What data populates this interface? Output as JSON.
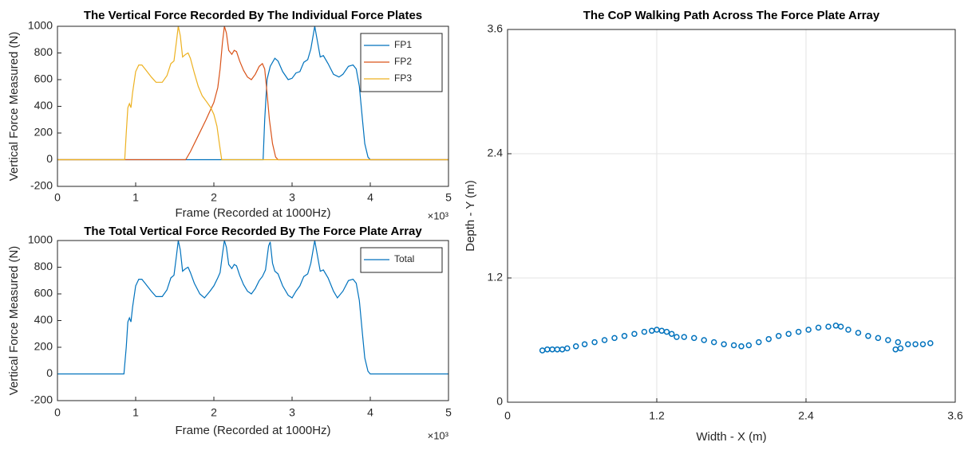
{
  "chart_data": [
    {
      "type": "line",
      "title": "The Vertical Force Recorded By The Individual Force Plates",
      "xlabel": "Frame (Recorded at 1000Hz)",
      "ylabel": "Vertical Force Measured (N)",
      "x_multiplier": "×10³",
      "xlim": [
        0,
        5000
      ],
      "ylim": [
        -200,
        1000
      ],
      "xticks": [
        0,
        {
          "value": 1000,
          "label": "1"
        },
        {
          "value": 2000,
          "label": "2"
        },
        {
          "value": 3000,
          "label": "3"
        },
        {
          "value": 4000,
          "label": "4"
        },
        {
          "value": 5000,
          "label": "5"
        }
      ],
      "yticks": [
        -200,
        0,
        200,
        400,
        600,
        800,
        1000
      ],
      "grid": false,
      "legend": "northeast",
      "series": [
        {
          "name": "FP1",
          "color": "#0072BD",
          "x": [
            0,
            2630,
            2650,
            2680,
            2720,
            2780,
            2820,
            2880,
            2950,
            3000,
            3050,
            3100,
            3150,
            3200,
            3240,
            3290,
            3320,
            3360,
            3400,
            3460,
            3530,
            3600,
            3650,
            3720,
            3780,
            3820,
            3860,
            3900,
            3930,
            3970,
            4000,
            5000
          ],
          "values": [
            0,
            0,
            300,
            600,
            700,
            760,
            740,
            660,
            600,
            610,
            650,
            660,
            730,
            750,
            830,
            1000,
            900,
            770,
            780,
            720,
            640,
            620,
            640,
            700,
            710,
            680,
            550,
            300,
            120,
            20,
            0,
            0
          ]
        },
        {
          "name": "FP2",
          "color": "#D95319",
          "x": [
            0,
            1640,
            1700,
            1800,
            1900,
            2000,
            2050,
            2080,
            2110,
            2135,
            2160,
            2190,
            2230,
            2260,
            2290,
            2330,
            2380,
            2430,
            2480,
            2530,
            2580,
            2620,
            2650,
            2680,
            2710,
            2750,
            2790,
            2820,
            5000
          ],
          "values": [
            0,
            0,
            60,
            180,
            300,
            430,
            540,
            680,
            880,
            1000,
            950,
            820,
            790,
            820,
            810,
            740,
            670,
            620,
            600,
            640,
            700,
            720,
            680,
            500,
            300,
            120,
            20,
            0,
            0
          ]
        },
        {
          "name": "FP3",
          "color": "#EDB120",
          "x": [
            0,
            860,
            880,
            900,
            920,
            940,
            960,
            1000,
            1040,
            1080,
            1120,
            1200,
            1260,
            1340,
            1400,
            1450,
            1490,
            1520,
            1545,
            1570,
            1600,
            1640,
            1670,
            1700,
            1750,
            1800,
            1850,
            1900,
            1960,
            2000,
            2040,
            2070,
            2100,
            5000
          ],
          "values": [
            0,
            0,
            200,
            390,
            420,
            390,
            500,
            660,
            710,
            710,
            680,
            620,
            580,
            580,
            630,
            720,
            740,
            880,
            1000,
            930,
            770,
            790,
            800,
            760,
            650,
            550,
            480,
            440,
            390,
            340,
            250,
            120,
            0,
            0
          ]
        }
      ]
    },
    {
      "type": "line",
      "title": "The Total Vertical Force Recorded By The Force Plate Array",
      "xlabel": "Frame (Recorded at 1000Hz)",
      "ylabel": "Vertical Force Measured (N)",
      "x_multiplier": "×10³",
      "xlim": [
        0,
        5000
      ],
      "ylim": [
        -200,
        1000
      ],
      "xticks": [
        0,
        {
          "value": 1000,
          "label": "1"
        },
        {
          "value": 2000,
          "label": "2"
        },
        {
          "value": 3000,
          "label": "3"
        },
        {
          "value": 4000,
          "label": "4"
        },
        {
          "value": 5000,
          "label": "5"
        }
      ],
      "yticks": [
        -200,
        0,
        200,
        400,
        600,
        800,
        1000
      ],
      "grid": false,
      "legend": "northeast",
      "series": [
        {
          "name": "Total",
          "color": "#0072BD",
          "x": [
            0,
            850,
            880,
            900,
            920,
            940,
            960,
            1000,
            1040,
            1080,
            1120,
            1200,
            1260,
            1340,
            1400,
            1450,
            1490,
            1520,
            1545,
            1570,
            1600,
            1640,
            1670,
            1700,
            1750,
            1820,
            1880,
            1950,
            2000,
            2050,
            2080,
            2110,
            2135,
            2160,
            2190,
            2230,
            2260,
            2290,
            2330,
            2380,
            2430,
            2480,
            2530,
            2580,
            2620,
            2660,
            2700,
            2720,
            2750,
            2780,
            2820,
            2880,
            2950,
            3000,
            3050,
            3100,
            3150,
            3200,
            3240,
            3290,
            3320,
            3360,
            3400,
            3460,
            3530,
            3580,
            3650,
            3720,
            3780,
            3820,
            3860,
            3900,
            3930,
            3970,
            4000,
            5000
          ],
          "values": [
            0,
            0,
            200,
            390,
            420,
            390,
            500,
            660,
            710,
            710,
            680,
            620,
            580,
            580,
            630,
            720,
            740,
            880,
            1000,
            930,
            770,
            790,
            800,
            760,
            680,
            600,
            570,
            620,
            660,
            720,
            760,
            900,
            1000,
            950,
            820,
            790,
            820,
            810,
            740,
            670,
            620,
            600,
            640,
            700,
            730,
            780,
            960,
            990,
            830,
            770,
            750,
            660,
            590,
            570,
            620,
            660,
            730,
            750,
            830,
            1000,
            900,
            770,
            780,
            720,
            620,
            570,
            620,
            700,
            710,
            680,
            550,
            300,
            120,
            20,
            0,
            0
          ]
        }
      ]
    },
    {
      "type": "scatter",
      "title": "The CoP Walking Path Across The Force Plate Array",
      "xlabel": "Width - X (m)",
      "ylabel": "Depth - Y (m)",
      "xlim": [
        0,
        3.6
      ],
      "ylim": [
        0,
        3.6
      ],
      "xticks": [
        0,
        1.2,
        2.4,
        3.6
      ],
      "yticks": [
        0,
        1.2,
        2.4,
        3.6
      ],
      "grid": true,
      "color": "#0072BD",
      "x": [
        0.28,
        0.32,
        0.36,
        0.4,
        0.44,
        0.48,
        0.55,
        0.62,
        0.7,
        0.78,
        0.86,
        0.94,
        1.02,
        1.1,
        1.16,
        1.2,
        1.24,
        1.28,
        1.32,
        1.36,
        1.42,
        1.5,
        1.58,
        1.66,
        1.74,
        1.82,
        1.88,
        1.94,
        2.02,
        2.1,
        2.18,
        2.26,
        2.34,
        2.42,
        2.5,
        2.58,
        2.64,
        2.68,
        2.74,
        2.82,
        2.9,
        2.98,
        3.06,
        3.14,
        3.22,
        3.28,
        3.34,
        3.4,
        3.12,
        3.16
      ],
      "values": [
        0.5,
        0.51,
        0.51,
        0.51,
        0.51,
        0.52,
        0.54,
        0.56,
        0.58,
        0.6,
        0.62,
        0.64,
        0.66,
        0.68,
        0.69,
        0.7,
        0.69,
        0.68,
        0.66,
        0.63,
        0.63,
        0.62,
        0.6,
        0.58,
        0.56,
        0.55,
        0.54,
        0.55,
        0.58,
        0.61,
        0.64,
        0.66,
        0.68,
        0.7,
        0.72,
        0.73,
        0.74,
        0.73,
        0.7,
        0.67,
        0.64,
        0.62,
        0.6,
        0.58,
        0.56,
        0.56,
        0.56,
        0.57,
        0.51,
        0.52
      ]
    }
  ]
}
